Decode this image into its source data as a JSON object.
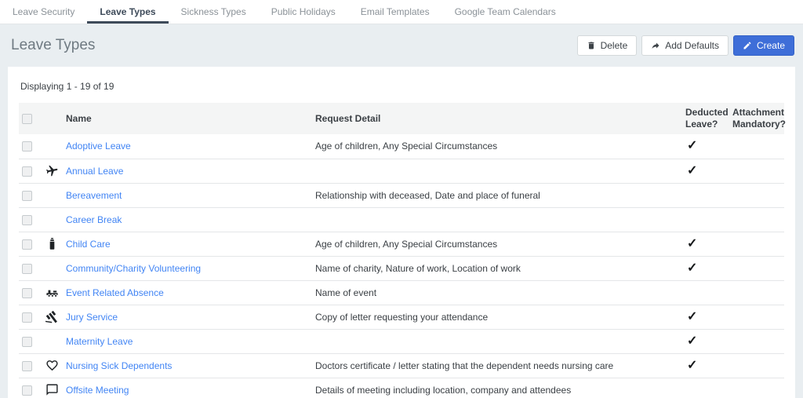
{
  "tabs": [
    {
      "label": "Leave Security",
      "active": false
    },
    {
      "label": "Leave Types",
      "active": true
    },
    {
      "label": "Sickness Types",
      "active": false
    },
    {
      "label": "Public Holidays",
      "active": false
    },
    {
      "label": "Email Templates",
      "active": false
    },
    {
      "label": "Google Team Calendars",
      "active": false
    }
  ],
  "page": {
    "title": "Leave Types"
  },
  "toolbar": {
    "delete_label": "Delete",
    "delete_icon": "trash-icon",
    "add_defaults_label": "Add Defaults",
    "add_defaults_icon": "forward-arrow-icon",
    "create_label": "Create",
    "create_icon": "pencil-icon"
  },
  "colors": {
    "accent_blue": "#3e6ed8",
    "link_blue": "#4285f4",
    "active_tab": "#3d4a59",
    "page_background": "#e9eef1"
  },
  "table": {
    "displaying": "Displaying 1 - 19 of 19",
    "check_glyph": "✓",
    "headers": {
      "name": "Name",
      "request_detail": "Request Detail",
      "deducted": "Deducted Leave?",
      "attachment": "Attachment Mandatory?"
    },
    "rows": [
      {
        "icon": "",
        "name": "Adoptive Leave",
        "request_detail": "Age of children, Any Special Circumstances",
        "deducted": true,
        "attachment": false
      },
      {
        "icon": "airplane-icon",
        "name": "Annual Leave",
        "request_detail": "",
        "deducted": true,
        "attachment": false
      },
      {
        "icon": "",
        "name": "Bereavement",
        "request_detail": "Relationship with deceased, Date and place of funeral",
        "deducted": false,
        "attachment": false
      },
      {
        "icon": "",
        "name": "Career Break",
        "request_detail": "",
        "deducted": false,
        "attachment": false
      },
      {
        "icon": "baby-bottle-icon",
        "name": "Child Care",
        "request_detail": "Age of children, Any Special Circumstances",
        "deducted": true,
        "attachment": false
      },
      {
        "icon": "",
        "name": "Community/Charity Volunteering",
        "request_detail": "Name of charity, Nature of work, Location of work",
        "deducted": true,
        "attachment": false
      },
      {
        "icon": "train-icon",
        "name": "Event Related Absence",
        "request_detail": "Name of event",
        "deducted": false,
        "attachment": false
      },
      {
        "icon": "gavel-icon",
        "name": "Jury Service",
        "request_detail": "Copy of letter requesting your attendance",
        "deducted": true,
        "attachment": false
      },
      {
        "icon": "",
        "name": "Maternity Leave",
        "request_detail": "",
        "deducted": true,
        "attachment": false
      },
      {
        "icon": "heart-icon",
        "name": "Nursing Sick Dependents",
        "request_detail": "Doctors certificate / letter stating that the dependent needs nursing care",
        "deducted": true,
        "attachment": false
      },
      {
        "icon": "speech-bubble-icon",
        "name": "Offsite Meeting",
        "request_detail": "Details of meeting including location, company and attendees",
        "deducted": false,
        "attachment": false
      }
    ]
  }
}
